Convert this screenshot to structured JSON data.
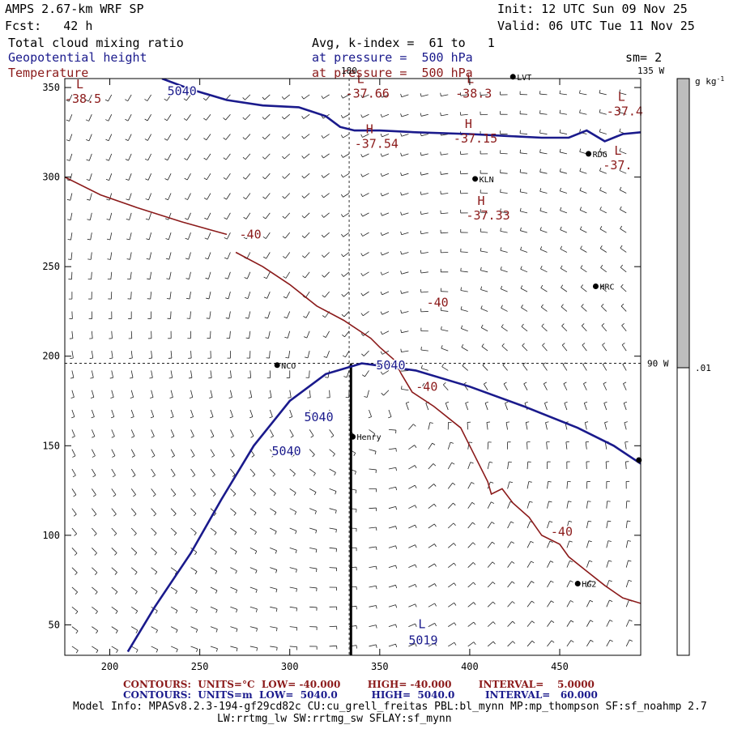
{
  "header": {
    "model": "AMPS 2.67-km WRF SP",
    "init": "Init: 12 UTC Sun 09 Nov 25",
    "fcst": "Fcst:   42 h",
    "valid": "Valid: 06 UTC Tue 11 Nov 25",
    "field1": "Total cloud mixing ratio",
    "field1_level": "Avg, k-index =  61 to   1",
    "field2": "Geopotential height",
    "field2_level": "at pressure =  500 hPa",
    "field3": "Temperature",
    "field3_level": "at pressure =  500 hPa",
    "smooth": "sm= 2"
  },
  "colors": {
    "height": "#1a1a8c",
    "temp": "#8b1a1a",
    "colorbar": "#bdbdbd"
  },
  "chart_data": {
    "type": "contour",
    "xlim": [
      175,
      495
    ],
    "ylim": [
      33,
      355
    ],
    "x_ticks": [
      "200",
      "250",
      "300",
      "350",
      "400",
      "450"
    ],
    "y_ticks": [
      "50",
      "100",
      "150",
      "200",
      "250",
      "300",
      "350"
    ],
    "meridians": [
      {
        "lon": 180,
        "label": "180",
        "x": 333
      },
      {
        "lon": -135,
        "label": "135 W",
        "x": 495
      }
    ],
    "parallels": [
      {
        "label": "90 W",
        "y": 196
      }
    ],
    "stations": [
      {
        "name": "LVT",
        "x": 424,
        "y": 356
      },
      {
        "name": "RDG",
        "x": 466,
        "y": 313
      },
      {
        "name": "KLN",
        "x": 403,
        "y": 299
      },
      {
        "name": "HRC",
        "x": 470,
        "y": 239
      },
      {
        "name": "NCO",
        "x": 293,
        "y": 195
      },
      {
        "name": "Henry",
        "x": 335,
        "y": 155
      },
      {
        "name": "HG2",
        "x": 460,
        "y": 73
      }
    ],
    "unlabeled_stations": [
      {
        "x": 494,
        "y": 142
      }
    ],
    "height_contours": {
      "value": 5040,
      "units": "m",
      "lines": [
        [
          [
            210,
            35
          ],
          [
            225,
            60
          ],
          [
            245,
            90
          ],
          [
            262,
            120
          ],
          [
            280,
            150
          ],
          [
            300,
            175
          ],
          [
            320,
            190
          ],
          [
            340,
            196
          ],
          [
            370,
            192
          ],
          [
            400,
            183
          ],
          [
            430,
            172
          ],
          [
            460,
            160
          ],
          [
            480,
            150
          ],
          [
            495,
            140
          ]
        ],
        [
          [
            229,
            355
          ],
          [
            245,
            349
          ],
          [
            265,
            343
          ],
          [
            285,
            340
          ],
          [
            305,
            339
          ],
          [
            320,
            334
          ],
          [
            328,
            328
          ],
          [
            336,
            326
          ],
          [
            350,
            326
          ],
          [
            370,
            325
          ],
          [
            400,
            324
          ],
          [
            420,
            323
          ],
          [
            440,
            322
          ],
          [
            455,
            322
          ],
          [
            465,
            326
          ],
          [
            475,
            320
          ],
          [
            485,
            324
          ],
          [
            495,
            325
          ]
        ]
      ],
      "labels": [
        {
          "text": "5040",
          "x": 232,
          "y": 348
        },
        {
          "text": "5040",
          "x": 348,
          "y": 195
        },
        {
          "text": "5040",
          "x": 308,
          "y": 166
        },
        {
          "text": "5040",
          "x": 290,
          "y": 147
        }
      ],
      "lows": [
        {
          "text": "L",
          "value": "5019",
          "x": 366,
          "y": 40
        }
      ]
    },
    "temp_contours": {
      "value": -40,
      "units": "C",
      "lines": [
        [
          [
            175,
            300
          ],
          [
            195,
            290
          ],
          [
            215,
            283
          ],
          [
            240,
            275
          ],
          [
            265,
            268
          ]
        ],
        [
          [
            270,
            258
          ],
          [
            285,
            250
          ],
          [
            300,
            240
          ],
          [
            315,
            228
          ],
          [
            330,
            220
          ],
          [
            345,
            210
          ],
          [
            350,
            205
          ],
          [
            358,
            198
          ],
          [
            362,
            190
          ],
          [
            368,
            180
          ],
          [
            380,
            172
          ],
          [
            395,
            160
          ],
          [
            400,
            150
          ],
          [
            410,
            130
          ],
          [
            412,
            123
          ],
          [
            418,
            126
          ],
          [
            424,
            118
          ],
          [
            433,
            110
          ],
          [
            440,
            100
          ],
          [
            450,
            95
          ],
          [
            455,
            88
          ],
          [
            465,
            80
          ],
          [
            475,
            72
          ],
          [
            485,
            65
          ],
          [
            495,
            62
          ]
        ]
      ],
      "labels": [
        {
          "text": "-40",
          "x": 272,
          "y": 268
        },
        {
          "text": "-40",
          "x": 376,
          "y": 230
        },
        {
          "text": "-40",
          "x": 370,
          "y": 183
        },
        {
          "text": "-40",
          "x": 445,
          "y": 102
        }
      ],
      "extrema": [
        {
          "kind": "L",
          "value": "-38.5",
          "x": 175,
          "y": 345
        },
        {
          "kind": "L",
          "value": "-37.66",
          "x": 331,
          "y": 348
        },
        {
          "kind": "L",
          "value": "-38.3",
          "x": 392,
          "y": 348
        },
        {
          "kind": "L",
          "value": "-37.4",
          "x": 476,
          "y": 338
        },
        {
          "kind": "H",
          "value": "-37.54",
          "x": 336,
          "y": 320
        },
        {
          "kind": "H",
          "value": "-37.15",
          "x": 391,
          "y": 323
        },
        {
          "kind": "L",
          "value": "-37.",
          "x": 474,
          "y": 308
        },
        {
          "kind": "H",
          "value": "-37.33",
          "x": 398,
          "y": 280
        }
      ]
    },
    "colorbar": {
      "units": "g kg",
      "units_sup": "-1",
      "tick_label": ".01"
    }
  },
  "footer": {
    "red_line": "CONTOURS:  UNITS=°C  LOW= -40.000        HIGH= -40.000        INTERVAL=    5.0000",
    "blue_line": "CONTOURS:  UNITS=m  LOW=  5040.0          HIGH=  5040.0         INTERVAL=   60.000",
    "model_info_1": "Model Info: MPASv8.2.3-194-gf29cd82c CU:cu_grell_freitas PBL:bl_mynn MP:mp_thompson SF:sf_noahmp 2.7",
    "model_info_2": "LW:rrtmg_lw SW:rrtmg_sw SFLAY:sf_mynn"
  }
}
